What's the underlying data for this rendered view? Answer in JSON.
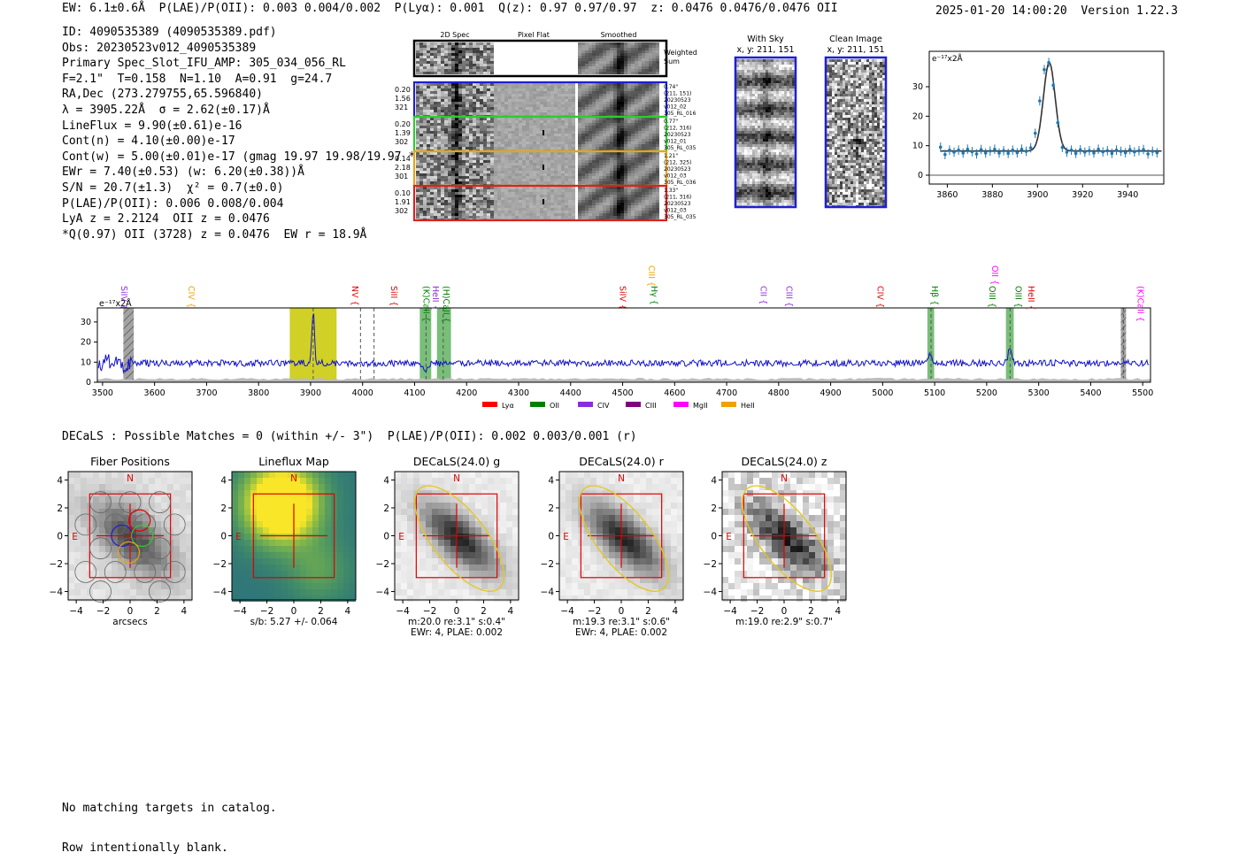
{
  "header": {
    "top_line": "EW: 6.1±0.6Å  P(LAE)/P(OII): 0.003 0.004/0.002  P(Lyα): 0.001  Q(z): 0.97 0.97/0.97  z: 0.0476 0.0476/0.0476 OII",
    "timestamp": "2025-01-20 14:00:20",
    "version": "Version 1.22.3"
  },
  "info": {
    "lines": [
      "ID: 4090535389 (4090535389.pdf)",
      "Obs: 20230523v012_4090535389",
      "Primary Spec_Slot_IFU_AMP: 305_034_056_RL",
      "F=2.1\"  T=0.158  N=1.10  A=0.91  g=24.7",
      "RA,Dec (273.279755,65.596840)",
      "λ = 3905.22Å  σ = 2.62(±0.17)Å",
      "LineFlux = 9.90(±0.61)e-16",
      "Cont(n) = 4.10(±0.00)e-17",
      "Cont(w) = 5.00(±0.01)e-17 (gmag 19.97 19.98/19.97 *)",
      "EWr = 7.40(±0.53) (w: 6.20(±0.38))Å",
      "S/N = 20.7(±1.3)  χ² = 0.7(±0.0)",
      "P(LAE)/P(OII): 0.006 0.008/0.004",
      "LyA z = 2.2124  OII z = 0.0476",
      "*Q(0.97) OII (3728) z = 0.0476  EW r = 18.9Å"
    ]
  },
  "cutouts": {
    "col_headers": [
      "2D Spec",
      "Pixel Flat",
      "Smoothed"
    ],
    "weighted_label": "Weighted Sum",
    "rows": [
      {
        "left": [
          "0.20",
          "1.56",
          "321"
        ],
        "right": [
          "0.74\"",
          "(211, 151)",
          "20230523",
          "v012_02",
          "305_RL_016"
        ],
        "color": "#1f1fd0"
      },
      {
        "left": [
          "0.20",
          "1.39",
          "302"
        ],
        "right": [
          "0.77\"",
          "(212, 316)",
          "20230523",
          "v012_01",
          "305_RL_035"
        ],
        "color": "#2ecc2e"
      },
      {
        "left": [
          "0.14",
          "2.18",
          "301"
        ],
        "right": [
          "1.21\"",
          "(212, 325)",
          "20230523",
          "v012_03",
          "305_RL_036"
        ],
        "color": "#e8a317"
      },
      {
        "left": [
          "0.10",
          "1.91",
          "302"
        ],
        "right": [
          "1.33\"",
          "(211, 316)",
          "20230523",
          "v012_03",
          "305_RL_035"
        ],
        "color": "#e0201b"
      }
    ],
    "with_sky": {
      "title": "With Sky",
      "sub": "x, y: 211, 151"
    },
    "clean": {
      "title": "Clean Image",
      "sub": "x, y: 211, 151"
    }
  },
  "chart_data": [
    {
      "type": "scatter",
      "title": "",
      "ylabel": "e⁻¹⁷x2Å",
      "xlim": [
        3852,
        3956
      ],
      "ylim": [
        -3,
        42
      ],
      "xticks": [
        3860,
        3880,
        3900,
        3920,
        3940
      ],
      "yticks": [
        0,
        10,
        20,
        30
      ],
      "points": {
        "x": [
          3857,
          3859,
          3861,
          3863,
          3865,
          3867,
          3869,
          3871,
          3873,
          3875,
          3877,
          3879,
          3881,
          3883,
          3885,
          3887,
          3889,
          3891,
          3893,
          3895,
          3897,
          3899,
          3901,
          3903,
          3905,
          3907,
          3909,
          3911,
          3913,
          3915,
          3917,
          3919,
          3921,
          3923,
          3925,
          3927,
          3929,
          3931,
          3933,
          3935,
          3937,
          3939,
          3941,
          3943,
          3945,
          3947,
          3949,
          3951,
          3953
        ],
        "y": [
          9.5,
          7,
          8.5,
          7.8,
          8.5,
          7.5,
          8.8,
          8,
          7.2,
          8.7,
          7.5,
          8.2,
          8.8,
          7.5,
          8.3,
          7.4,
          8.5,
          7.6,
          8.8,
          8.1,
          9.3,
          14.2,
          25.2,
          35.8,
          38.2,
          30.5,
          17.8,
          9.4,
          7.8,
          8.5,
          7.4,
          8.6,
          7.8,
          8.3,
          7.5,
          8.8,
          7.9,
          8.3,
          7.4,
          8.5,
          8.1,
          7.6,
          8.7,
          7.9,
          8.3,
          8.7,
          7.2,
          8.1,
          7.6
        ]
      },
      "model": {
        "center": 3905.22,
        "sigma": 2.62,
        "amplitude": 30,
        "continuum": 8.2
      }
    },
    {
      "type": "line",
      "ylabel": "e⁻¹⁷x2Å",
      "xlim": [
        3490,
        5515
      ],
      "ylim": [
        0,
        37
      ],
      "xticks": [
        3500,
        3600,
        3700,
        3800,
        3900,
        4000,
        4100,
        4200,
        4300,
        4400,
        4500,
        4600,
        4700,
        4800,
        4900,
        5000,
        5100,
        5200,
        5300,
        5400,
        5500
      ],
      "yticks": [
        0,
        10,
        20,
        30
      ],
      "continuum": 9.5,
      "peaks": [
        {
          "x": 3905,
          "amp": 26,
          "sigma": 2.5
        },
        {
          "x": 4120,
          "amp": -3.5,
          "sigma": 4
        },
        {
          "x": 5092,
          "amp": 4,
          "sigma": 4
        },
        {
          "x": 5245,
          "amp": 7,
          "sigma": 4
        }
      ],
      "bands": [
        {
          "x0": 3540,
          "x1": 3560,
          "color": "#999999",
          "hatch": true
        },
        {
          "x0": 3860,
          "x1": 3950,
          "color": "#c8c800"
        },
        {
          "x0": 4110,
          "x1": 4132,
          "color": "#62b362"
        },
        {
          "x0": 4143,
          "x1": 4170,
          "color": "#62b362"
        },
        {
          "x0": 5086,
          "x1": 5099,
          "color": "#62b362"
        },
        {
          "x0": 5237,
          "x1": 5252,
          "color": "#62b362"
        },
        {
          "x0": 5458,
          "x1": 5468,
          "color": "#999999",
          "hatch": true
        }
      ],
      "dashed": [
        3905,
        3996,
        4022,
        4122,
        4155,
        5093,
        5245,
        5463
      ],
      "line_labels": [
        {
          "text": "SiIV",
          "x": 3531,
          "color": "#8a2be2",
          "row": 0
        },
        {
          "text": "CIV",
          "x": 3660,
          "color": "#f0a000",
          "row": 0
        },
        {
          "text": "NV",
          "x": 3975,
          "color": "#e00000",
          "row": 0
        },
        {
          "text": "SiII",
          "x": 4050,
          "color": "#e00000",
          "row": 0
        },
        {
          "text": "(K)CaII",
          "x": 4112,
          "color": "#008000",
          "row": 0
        },
        {
          "text": "HeII",
          "x": 4130,
          "color": "#8a2be2",
          "row": 0
        },
        {
          "text": "(H)CaII",
          "x": 4150,
          "color": "#008000",
          "row": 0
        },
        {
          "text": "SiIV",
          "x": 4490,
          "color": "#e00000",
          "row": 0
        },
        {
          "text": "CIII",
          "x": 4545,
          "color": "#f0a000",
          "row": 1
        },
        {
          "text": "Hγ",
          "x": 4550,
          "color": "#008000",
          "row": 0
        },
        {
          "text": "CII",
          "x": 4760,
          "color": "#8a2be2",
          "row": 0
        },
        {
          "text": "CIII",
          "x": 4810,
          "color": "#8a2be2",
          "row": 0
        },
        {
          "text": "CIV",
          "x": 4985,
          "color": "#e00000",
          "row": 0
        },
        {
          "text": "Hβ",
          "x": 5090,
          "color": "#008000",
          "row": 0
        },
        {
          "text": "OIII",
          "x": 5200,
          "color": "#008000",
          "row": 0
        },
        {
          "text": "OII",
          "x": 5205,
          "color": "#ff00ff",
          "row": 1
        },
        {
          "text": "OIII",
          "x": 5250,
          "color": "#008000",
          "row": 0
        },
        {
          "text": "HeII",
          "x": 5275,
          "color": "#e00000",
          "row": 0
        },
        {
          "text": "(K)CaII",
          "x": 5485,
          "color": "#ff00ff",
          "row": 0
        }
      ],
      "legend": [
        {
          "name": "Lyα",
          "color": "#ff0000"
        },
        {
          "name": "OII",
          "color": "#008000"
        },
        {
          "name": "CIV",
          "color": "#8a2be2"
        },
        {
          "name": "CIII",
          "color": "#800080"
        },
        {
          "name": "MgII",
          "color": "#ff00ff"
        },
        {
          "name": "HeII",
          "color": "#f0a000"
        }
      ]
    }
  ],
  "match_line": "DECaLS : Possible Matches = 0 (within +/- 3\")  P(LAE)/P(OII): 0.002 0.003/0.001 (r)",
  "panels": [
    {
      "title": "Fiber Positions",
      "caption": [
        "arcsecs"
      ],
      "kind": "fiber"
    },
    {
      "title": "Lineflux Map",
      "caption": [
        "s/b: 5.27 +/- 0.064"
      ],
      "kind": "flux"
    },
    {
      "title": "DECaLS(24.0) g",
      "caption": [
        "m:20.0  re:3.1\"  s:0.4\"",
        "EWr: 4, PLAE: 0.002"
      ],
      "kind": "galaxy",
      "seed": 7
    },
    {
      "title": "DECaLS(24.0) r",
      "caption": [
        "m:19.3  re:3.1\"  s:0.6\"",
        "EWr: 4, PLAE: 0.002"
      ],
      "kind": "galaxy",
      "seed": 11
    },
    {
      "title": "DECaLS(24.0) z",
      "caption": [
        "m:19.0  re:2.9\"  s:0.7\""
      ],
      "kind": "galaxy_noisy",
      "seed": 19
    }
  ],
  "panel_axes": {
    "ticks": [
      "−4",
      "−2",
      "0",
      "2",
      "4"
    ],
    "n_label": "N",
    "e_label": "E"
  },
  "footer": [
    "No matching targets in catalog.",
    "Row intentionally blank."
  ]
}
